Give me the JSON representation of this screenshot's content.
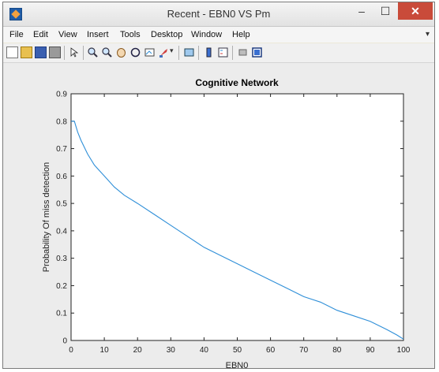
{
  "window": {
    "title": "Recent - EBN0 VS Pm",
    "minimize_label": "–",
    "maximize_label": "☐",
    "close_label": "✕"
  },
  "menu": {
    "items": [
      "File",
      "Edit",
      "View",
      "Insert",
      "Tools",
      "Desktop",
      "Window",
      "Help"
    ],
    "overflow": "▾"
  },
  "toolbar": {
    "icons": [
      "new-figure-icon",
      "open-file-icon",
      "save-icon",
      "print-icon",
      "pointer-icon",
      "zoom-in-icon",
      "zoom-out-icon",
      "pan-icon",
      "rotate-3d-icon",
      "data-cursor-icon",
      "brush-icon",
      "colorbar-icon",
      "legend-icon",
      "hide-plot-tools-icon",
      "show-plot-tools-icon"
    ]
  },
  "colors": {
    "line": "#2f8fd8",
    "close_button": "#c94b3a"
  },
  "chart_data": {
    "type": "line",
    "title": "Cognitive Network",
    "xlabel": "EBN0",
    "ylabel": "Probability Of miss detection",
    "xlim": [
      0,
      100
    ],
    "ylim": [
      0,
      0.9
    ],
    "xticks": [
      0,
      10,
      20,
      30,
      40,
      50,
      60,
      70,
      80,
      90,
      100
    ],
    "yticks": [
      0,
      0.1,
      0.2,
      0.3,
      0.4,
      0.5,
      0.6,
      0.7,
      0.8,
      0.9
    ],
    "grid": false,
    "series": [
      {
        "x": [
          0,
          1,
          2,
          3,
          5,
          7,
          10,
          13,
          16,
          20,
          25,
          30,
          35,
          40,
          45,
          50,
          55,
          60,
          65,
          70,
          75,
          80,
          85,
          90,
          95,
          98,
          100
        ],
        "y": [
          0.8,
          0.8,
          0.76,
          0.73,
          0.68,
          0.64,
          0.6,
          0.56,
          0.53,
          0.5,
          0.46,
          0.42,
          0.38,
          0.34,
          0.31,
          0.28,
          0.25,
          0.22,
          0.19,
          0.16,
          0.14,
          0.11,
          0.09,
          0.07,
          0.04,
          0.02,
          0.005
        ]
      }
    ]
  }
}
